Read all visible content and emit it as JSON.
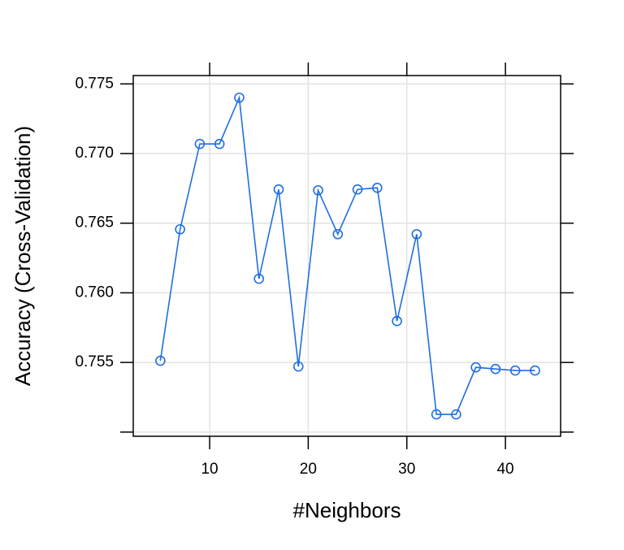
{
  "chart_data": {
    "type": "line",
    "x_label": "#Neighbors",
    "y_label": "Accuracy (Cross-Validation)",
    "x": [
      5,
      7,
      9,
      11,
      13,
      15,
      17,
      19,
      21,
      23,
      25,
      27,
      29,
      31,
      33,
      35,
      37,
      39,
      41,
      43
    ],
    "series": [
      {
        "color": "#1f6fe0",
        "values": [
          0.75512,
          0.76456,
          0.77069,
          0.77069,
          0.77401,
          0.76101,
          0.76742,
          0.75471,
          0.76736,
          0.76421,
          0.76742,
          0.76754,
          0.75797,
          0.76421,
          0.75127,
          0.75127,
          0.75465,
          0.75453,
          0.75442,
          0.75442
        ]
      }
    ],
    "xlim": [
      2.25,
      45.6
    ],
    "ylim": [
      0.7497,
      0.7756
    ],
    "xticks": [
      10,
      20,
      30,
      40
    ],
    "yticks": [
      {
        "value": 0.75,
        "label": null
      },
      {
        "value": 0.755,
        "label": "0.755"
      },
      {
        "value": 0.76,
        "label": "0.760"
      },
      {
        "value": 0.765,
        "label": "0.765"
      },
      {
        "value": 0.77,
        "label": "0.770"
      },
      {
        "value": 0.775,
        "label": "0.775"
      }
    ],
    "grid": true
  }
}
